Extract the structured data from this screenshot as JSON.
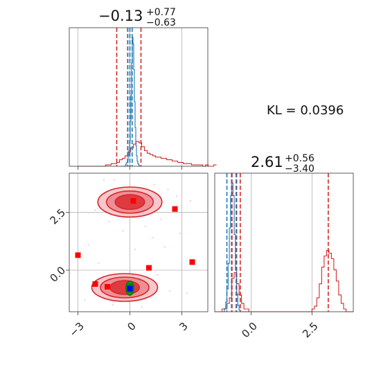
{
  "chart_data": {
    "type": "corner",
    "kl_text": "KL = 0.0396",
    "colors": {
      "red": "#d62728",
      "blue": "#1f77b4",
      "green": "#008000",
      "point_blue": "#0000ff",
      "grid": "#b0b0b0"
    },
    "param1": {
      "title_main": "−0.13",
      "title_sup": "+0.77",
      "title_sub": "−0.63",
      "xlim": [
        -3.5,
        4.5
      ],
      "ticks": [
        {
          "value": -3,
          "label": "−3"
        },
        {
          "value": 0,
          "label": "0"
        },
        {
          "value": 3,
          "label": "3"
        }
      ],
      "red_quantiles": [
        -0.76,
        -0.13,
        0.64
      ],
      "blue_quantiles": [
        -0.12,
        0.0,
        0.13
      ],
      "red_hist": {
        "bin_start": -3.0,
        "bin_width": 0.16,
        "values": [
          0,
          0,
          0,
          0,
          0,
          0,
          0,
          0,
          0,
          0,
          1,
          1,
          2,
          2,
          3,
          5,
          6,
          8,
          11,
          14,
          17,
          19,
          18,
          15,
          12,
          10,
          9,
          8,
          7,
          7,
          6,
          6,
          5,
          5,
          4,
          4,
          3,
          3,
          2,
          2,
          2,
          1,
          1,
          1,
          1,
          0,
          1,
          0,
          0,
          1
        ]
      },
      "blue_hist": {
        "bin_start": -0.5,
        "bin_width": 0.04,
        "values": [
          0,
          0,
          0,
          0,
          0,
          0,
          1,
          2,
          3,
          5,
          8,
          12,
          20,
          35,
          55,
          80,
          100,
          95,
          75,
          50,
          30,
          16,
          8,
          4,
          2,
          1,
          0,
          0
        ]
      }
    },
    "param2": {
      "title_main": "2.61",
      "title_sup": "+0.56",
      "title_sub": "−3.40",
      "xlim": [
        -1.5,
        4.2
      ],
      "ticks": [
        {
          "value": 0.0,
          "label": "0.0"
        },
        {
          "value": 2.5,
          "label": "2.5"
        }
      ],
      "red_quantiles": [
        -0.79,
        -0.6,
        -0.45,
        3.17
      ],
      "blue_quantiles": [
        -1.0,
        -0.81,
        -0.62
      ],
      "red_hist": {
        "bin_start": -1.5,
        "bin_width": 0.1,
        "values": [
          0,
          0,
          0,
          1,
          1,
          3,
          5,
          12,
          14,
          10,
          6,
          3,
          1,
          1,
          0,
          0,
          0,
          0,
          0,
          0,
          0,
          0,
          0,
          0,
          0,
          0,
          0,
          0,
          0,
          0,
          0,
          0,
          0,
          0,
          0,
          0,
          0,
          0,
          0,
          0,
          1,
          2,
          5,
          10,
          16,
          20,
          22,
          21,
          19,
          15,
          11,
          6,
          3,
          1,
          0,
          0,
          0
        ]
      },
      "blue_hist": {
        "bin_start": -1.5,
        "bin_width": 0.05,
        "values": [
          0,
          0,
          0,
          0,
          0,
          0,
          0,
          0,
          2,
          6,
          14,
          30,
          52,
          72,
          80,
          72,
          48,
          26,
          11,
          4,
          1,
          0,
          0,
          0,
          0,
          0,
          0,
          0
        ]
      }
    },
    "joint": {
      "ylim": [
        -1.8,
        4.2
      ],
      "ticks": [
        {
          "value": 0.0,
          "label": "0.0"
        },
        {
          "value": 2.5,
          "label": "2.5"
        }
      ],
      "upper_mode": {
        "x": 0.0,
        "y": 2.95,
        "levels": [
          [
            1.85,
            0.65
          ],
          [
            1.35,
            0.48
          ],
          [
            0.85,
            0.32
          ]
        ]
      },
      "lower_mode": {
        "x": -0.3,
        "y": -0.75,
        "levels": [
          [
            1.9,
            0.6
          ],
          [
            1.4,
            0.45
          ],
          [
            0.85,
            0.3
          ]
        ]
      },
      "green_contours": [
        [
          0.22,
          0.3
        ],
        [
          0.14,
          0.19
        ]
      ],
      "green_center": {
        "x": 0.0,
        "y": -0.78
      },
      "red_points": [
        {
          "x": 0.2,
          "y": 3.0
        },
        {
          "x": 2.6,
          "y": 2.65
        },
        {
          "x": -3.0,
          "y": 0.65
        },
        {
          "x": 1.1,
          "y": 0.1
        },
        {
          "x": 3.6,
          "y": 0.35
        },
        {
          "x": -2.0,
          "y": -0.6
        },
        {
          "x": -1.3,
          "y": -0.72
        }
      ],
      "blue_point": {
        "x": 0.0,
        "y": -0.8
      },
      "scatter_dots": [
        {
          "x": -1.5,
          "y": 3.9
        },
        {
          "x": 1.4,
          "y": 3.7
        },
        {
          "x": 2.2,
          "y": 3.5
        },
        {
          "x": -2.0,
          "y": 2.6
        },
        {
          "x": 1.8,
          "y": 2.2
        },
        {
          "x": 3.0,
          "y": 2.4
        },
        {
          "x": 0.9,
          "y": 1.9
        },
        {
          "x": -1.2,
          "y": 2.1
        },
        {
          "x": 2.7,
          "y": 3.2
        },
        {
          "x": -0.4,
          "y": 1.7
        },
        {
          "x": 1.3,
          "y": 1.4
        },
        {
          "x": -2.4,
          "y": 1.1
        },
        {
          "x": 2.9,
          "y": 1.6
        },
        {
          "x": 0.3,
          "y": 0.9
        },
        {
          "x": -1.8,
          "y": 0.3
        },
        {
          "x": 1.6,
          "y": -0.2
        },
        {
          "x": 2.3,
          "y": -0.9
        },
        {
          "x": -2.6,
          "y": -1.3
        },
        {
          "x": 3.3,
          "y": -1.0
        },
        {
          "x": -1.0,
          "y": -1.5
        },
        {
          "x": 0.7,
          "y": -1.6
        },
        {
          "x": 2.0,
          "y": 1.0
        },
        {
          "x": -0.9,
          "y": 3.9
        },
        {
          "x": 3.5,
          "y": 3.0
        }
      ]
    }
  }
}
